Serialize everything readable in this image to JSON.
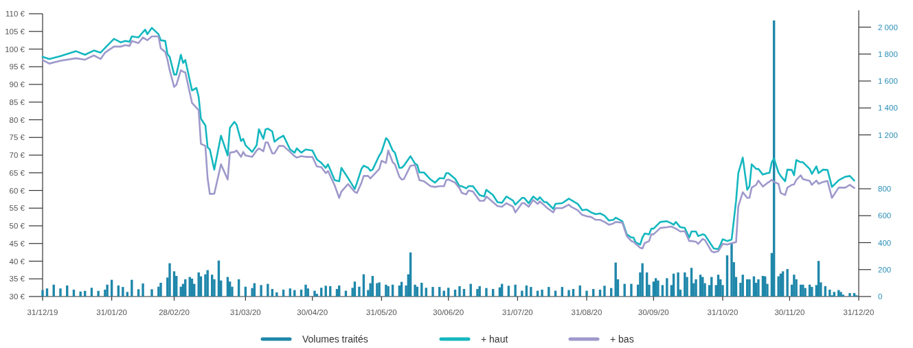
{
  "chart_data": {
    "type": "line",
    "legend": "bottom",
    "xlim": [
      "2019-12-31",
      "2020-12-31"
    ],
    "xticks": [
      {
        "value": "2019-12-31",
        "label": "31/12/19"
      },
      {
        "value": "2020-01-31",
        "label": "31/01/20"
      },
      {
        "value": "2020-02-28",
        "label": "28/02/20"
      },
      {
        "value": "2020-03-31",
        "label": "31/03/20"
      },
      {
        "value": "2020-04-30",
        "label": "30/04/20"
      },
      {
        "value": "2020-05-31",
        "label": "31/05/20"
      },
      {
        "value": "2020-06-30",
        "label": "30/06/20"
      },
      {
        "value": "2020-07-31",
        "label": "31/07/20"
      },
      {
        "value": "2020-08-31",
        "label": "31/08/20"
      },
      {
        "value": "2020-09-30",
        "label": "30/09/20"
      },
      {
        "value": "2020-10-31",
        "label": "31/10/20"
      },
      {
        "value": "2020-11-30",
        "label": "30/11/20"
      },
      {
        "value": "2020-12-31",
        "label": "31/12/20"
      }
    ],
    "ylim": [
      30,
      110
    ],
    "yticks": [
      {
        "value": 30,
        "label": "30 €"
      },
      {
        "value": 35,
        "label": "35 €"
      },
      {
        "value": 40,
        "label": "40 €"
      },
      {
        "value": 45,
        "label": "45 €"
      },
      {
        "value": 50,
        "label": "50 €"
      },
      {
        "value": 55,
        "label": "55 €"
      },
      {
        "value": 60,
        "label": "60 €"
      },
      {
        "value": 65,
        "label": "65 €"
      },
      {
        "value": 70,
        "label": "70 €"
      },
      {
        "value": 75,
        "label": "75 €"
      },
      {
        "value": 80,
        "label": "80 €"
      },
      {
        "value": 85,
        "label": "85 €"
      },
      {
        "value": 90,
        "label": "90 €"
      },
      {
        "value": 95,
        "label": "95 €"
      },
      {
        "value": 100,
        "label": "100 €"
      },
      {
        "value": 105,
        "label": "105 €"
      },
      {
        "value": 110,
        "label": "110 €"
      }
    ],
    "y2lim": [
      0,
      2125
    ],
    "y2ticks": [
      0,
      200,
      400,
      600,
      800,
      {
        "value": 1200,
        "label": "1 200"
      },
      {
        "value": 1400,
        "label": "1 400"
      },
      {
        "value": 1600,
        "label": "1 600"
      },
      {
        "value": 1800,
        "label": "1 800"
      },
      {
        "value": 2000,
        "label": "2 000"
      }
    ],
    "x": [
      "2019-12-31",
      "2020-01-03",
      "2020-01-08",
      "2020-01-15",
      "2020-01-19",
      "2020-01-23",
      "2020-01-26",
      "2020-01-28",
      "2020-02-01",
      "2020-02-04",
      "2020-02-06",
      "2020-02-08",
      "2020-02-09",
      "2020-02-12",
      "2020-02-14",
      "2020-02-15",
      "2020-02-16",
      "2020-02-18",
      "2020-02-21",
      "2020-02-22",
      "2020-02-24",
      "2020-02-25",
      "2020-02-26",
      "2020-02-28",
      "2020-02-29",
      "2020-03-02",
      "2020-03-03",
      "2020-03-04",
      "2020-03-07",
      "2020-03-09",
      "2020-03-10",
      "2020-03-11",
      "2020-03-13",
      "2020-03-14",
      "2020-03-15",
      "2020-03-17",
      "2020-03-20",
      "2020-03-23",
      "2020-03-24",
      "2020-03-26",
      "2020-03-27",
      "2020-03-29",
      "2020-03-30",
      "2020-03-31",
      "2020-04-03",
      "2020-04-05",
      "2020-04-06",
      "2020-04-08",
      "2020-04-09",
      "2020-04-10",
      "2020-04-12",
      "2020-04-13",
      "2020-04-15",
      "2020-04-17",
      "2020-04-20",
      "2020-04-22",
      "2020-04-23",
      "2020-04-25",
      "2020-04-27",
      "2020-04-30",
      "2020-05-02",
      "2020-05-04",
      "2020-05-06",
      "2020-05-07",
      "2020-05-10",
      "2020-05-12",
      "2020-05-13",
      "2020-05-16",
      "2020-05-19",
      "2020-05-20",
      "2020-05-22",
      "2020-05-23",
      "2020-05-25",
      "2020-05-26",
      "2020-05-27",
      "2020-05-30",
      "2020-05-31",
      "2020-06-02",
      "2020-06-03",
      "2020-06-05",
      "2020-06-06",
      "2020-06-08",
      "2020-06-09",
      "2020-06-10",
      "2020-06-13",
      "2020-06-15",
      "2020-06-16",
      "2020-06-17",
      "2020-06-19",
      "2020-06-22",
      "2020-06-24",
      "2020-06-26",
      "2020-06-28",
      "2020-06-29",
      "2020-06-30",
      "2020-07-03",
      "2020-07-05",
      "2020-07-06",
      "2020-07-08",
      "2020-07-09",
      "2020-07-11",
      "2020-07-14",
      "2020-07-16",
      "2020-07-17",
      "2020-07-20",
      "2020-07-22",
      "2020-07-24",
      "2020-07-26",
      "2020-07-29",
      "2020-07-30",
      "2020-08-02",
      "2020-08-03",
      "2020-08-05",
      "2020-08-07",
      "2020-08-09",
      "2020-08-10",
      "2020-08-12",
      "2020-08-13",
      "2020-08-16",
      "2020-08-17",
      "2020-08-20",
      "2020-08-23",
      "2020-08-24",
      "2020-08-27",
      "2020-08-29",
      "2020-08-31",
      "2020-09-02",
      "2020-09-04",
      "2020-09-06",
      "2020-09-08",
      "2020-09-10",
      "2020-09-12",
      "2020-09-13",
      "2020-09-16",
      "2020-09-18",
      "2020-09-20",
      "2020-09-21",
      "2020-09-22",
      "2020-09-24",
      "2020-09-25",
      "2020-09-26",
      "2020-09-28",
      "2020-09-29",
      "2020-09-30",
      "2020-10-03",
      "2020-10-06",
      "2020-10-08",
      "2020-10-09",
      "2020-10-10",
      "2020-10-12",
      "2020-10-14",
      "2020-10-16",
      "2020-10-17",
      "2020-10-19",
      "2020-10-20",
      "2020-10-22",
      "2020-10-23",
      "2020-10-26",
      "2020-10-27",
      "2020-10-29",
      "2020-10-30",
      "2020-10-31",
      "2020-11-02",
      "2020-11-04",
      "2020-11-06",
      "2020-11-07",
      "2020-11-09",
      "2020-11-11",
      "2020-11-12",
      "2020-11-13",
      "2020-11-15",
      "2020-11-16",
      "2020-11-18",
      "2020-11-20",
      "2020-11-21",
      "2020-11-22",
      "2020-11-23",
      "2020-11-25",
      "2020-11-26",
      "2020-11-28",
      "2020-11-29",
      "2020-12-01",
      "2020-12-02",
      "2020-12-03",
      "2020-12-05",
      "2020-12-06",
      "2020-12-09",
      "2020-12-10",
      "2020-12-12",
      "2020-12-13",
      "2020-12-15",
      "2020-12-17",
      "2020-12-19",
      "2020-12-22",
      "2020-12-25",
      "2020-12-27",
      "2020-12-29"
    ],
    "series": [
      {
        "type": "bar",
        "axis": "y2",
        "name": "Volumes traités",
        "color": "#1f87aa",
        "x": [
          "2019-12-31",
          "2020-01-02",
          "2020-01-05",
          "2020-01-08",
          "2020-01-11",
          "2020-01-14",
          "2020-01-17",
          "2020-01-19",
          "2020-01-22",
          "2020-01-25",
          "2020-01-28",
          "2020-01-29",
          "2020-01-31",
          "2020-02-03",
          "2020-02-05",
          "2020-02-07",
          "2020-02-09",
          "2020-02-12",
          "2020-02-14",
          "2020-02-18",
          "2020-02-21",
          "2020-02-22",
          "2020-02-25",
          "2020-02-26",
          "2020-02-28",
          "2020-02-29",
          "2020-03-02",
          "2020-03-03",
          "2020-03-04",
          "2020-03-06",
          "2020-03-07",
          "2020-03-08",
          "2020-03-10",
          "2020-03-11",
          "2020-03-13",
          "2020-03-14",
          "2020-03-16",
          "2020-03-17",
          "2020-03-19",
          "2020-03-20",
          "2020-03-23",
          "2020-03-24",
          "2020-03-25",
          "2020-03-28",
          "2020-03-31",
          "2020-04-03",
          "2020-04-04",
          "2020-04-07",
          "2020-04-10",
          "2020-04-12",
          "2020-04-14",
          "2020-04-17",
          "2020-04-20",
          "2020-04-22",
          "2020-04-25",
          "2020-04-27",
          "2020-04-28",
          "2020-05-01",
          "2020-05-02",
          "2020-05-04",
          "2020-05-06",
          "2020-05-08",
          "2020-05-11",
          "2020-05-12",
          "2020-05-15",
          "2020-05-18",
          "2020-05-19",
          "2020-05-21",
          "2020-05-23",
          "2020-05-25",
          "2020-05-26",
          "2020-05-27",
          "2020-05-29",
          "2020-05-30",
          "2020-06-02",
          "2020-06-03",
          "2020-06-05",
          "2020-06-08",
          "2020-06-09",
          "2020-06-11",
          "2020-06-12",
          "2020-06-13",
          "2020-06-15",
          "2020-06-16",
          "2020-06-18",
          "2020-06-20",
          "2020-06-23",
          "2020-06-26",
          "2020-06-28",
          "2020-06-30",
          "2020-07-03",
          "2020-07-05",
          "2020-07-07",
          "2020-07-10",
          "2020-07-13",
          "2020-07-14",
          "2020-07-17",
          "2020-07-20",
          "2020-07-23",
          "2020-07-24",
          "2020-07-27",
          "2020-07-30",
          "2020-08-02",
          "2020-08-04",
          "2020-08-06",
          "2020-08-09",
          "2020-08-11",
          "2020-08-14",
          "2020-08-17",
          "2020-08-20",
          "2020-08-23",
          "2020-08-25",
          "2020-08-28",
          "2020-08-31",
          "2020-09-03",
          "2020-09-06",
          "2020-09-08",
          "2020-09-11",
          "2020-09-13",
          "2020-09-14",
          "2020-09-17",
          "2020-09-20",
          "2020-09-23",
          "2020-09-24",
          "2020-09-25",
          "2020-09-27",
          "2020-09-28",
          "2020-09-30",
          "2020-10-01",
          "2020-10-02",
          "2020-10-04",
          "2020-10-06",
          "2020-10-08",
          "2020-10-09",
          "2020-10-11",
          "2020-10-12",
          "2020-10-14",
          "2020-10-15",
          "2020-10-17",
          "2020-10-18",
          "2020-10-19",
          "2020-10-21",
          "2020-10-22",
          "2020-10-23",
          "2020-10-25",
          "2020-10-26",
          "2020-10-28",
          "2020-10-29",
          "2020-10-30",
          "2020-10-31",
          "2020-11-02",
          "2020-11-04",
          "2020-11-05",
          "2020-11-06",
          "2020-11-08",
          "2020-11-09",
          "2020-11-11",
          "2020-11-12",
          "2020-11-14",
          "2020-11-15",
          "2020-11-16",
          "2020-11-18",
          "2020-11-19",
          "2020-11-20",
          "2020-11-22",
          "2020-11-23",
          "2020-11-25",
          "2020-11-26",
          "2020-11-27",
          "2020-11-29",
          "2020-12-01",
          "2020-12-02",
          "2020-12-03",
          "2020-12-05",
          "2020-12-06",
          "2020-12-07",
          "2020-12-09",
          "2020-12-10",
          "2020-12-12",
          "2020-12-13",
          "2020-12-14",
          "2020-12-16",
          "2020-12-18",
          "2020-12-19",
          "2020-12-20",
          "2020-12-22",
          "2020-12-23",
          "2020-12-24",
          "2020-12-27",
          "2020-12-29",
          "2020-12-30"
        ],
        "values": [
          48,
          60,
          88,
          60,
          82,
          51,
          37,
          42,
          65,
          42,
          51,
          88,
          124,
          82,
          71,
          34,
          124,
          54,
          97,
          54,
          73,
          102,
          141,
          247,
          187,
          153,
          73,
          94,
          128,
          145,
          133,
          94,
          179,
          150,
          165,
          196,
          162,
          128,
          267,
          119,
          145,
          111,
          73,
          128,
          73,
          63,
          99,
          85,
          94,
          56,
          31,
          51,
          60,
          48,
          51,
          88,
          60,
          43,
          20,
          65,
          80,
          77,
          56,
          82,
          43,
          65,
          111,
          73,
          165,
          48,
          99,
          153,
          99,
          105,
          88,
          77,
          88,
          82,
          109,
          82,
          165,
          327,
          88,
          73,
          102,
          65,
          71,
          71,
          43,
          65,
          51,
          77,
          56,
          94,
          56,
          77,
          63,
          56,
          68,
          94,
          80,
          88,
          43,
          82,
          71,
          43,
          51,
          71,
          43,
          71,
          48,
          56,
          82,
          43,
          56,
          51,
          80,
          63,
          252,
          128,
          94,
          94,
          88,
          179,
          247,
          179,
          88,
          111,
          136,
          119,
          85,
          136,
          85,
          170,
          179,
          51,
          179,
          145,
          213,
          99,
          128,
          162,
          145,
          99,
          85,
          145,
          85,
          162,
          128,
          85,
          306,
          400,
          255,
          145,
          102,
          162,
          128,
          128,
          150,
          102,
          128,
          153,
          150,
          94,
          323,
          2050,
          150,
          170,
          187,
          204,
          88,
          162,
          128,
          88,
          88,
          63,
          88,
          71,
          85,
          264,
          105,
          77,
          51,
          9,
          34,
          48,
          34,
          14,
          26,
          26,
          9
        ]
      },
      {
        "name": "+ haut",
        "color": "#14b7bf",
        "values": [
          97.8,
          97.2,
          98,
          99.4,
          98.4,
          99.6,
          99,
          100.3,
          102.9,
          101.9,
          102.3,
          102.1,
          103.6,
          103.3,
          104.8,
          105.5,
          104.2,
          106,
          104.2,
          102.5,
          102.3,
          98.6,
          97.8,
          92.8,
          92.8,
          98.4,
          96.1,
          96.9,
          88.3,
          89,
          86.4,
          80.3,
          78.4,
          72.2,
          71.6,
          65.9,
          75.5,
          69.9,
          77.7,
          79.4,
          78.6,
          74,
          74.6,
          72.8,
          70.9,
          72.8,
          77.3,
          74.6,
          77.3,
          77.5,
          76.7,
          73.8,
          74.8,
          75.5,
          71.6,
          70.7,
          71.9,
          70.7,
          71.6,
          71.3,
          68.8,
          67.8,
          66.4,
          67.4,
          62.9,
          62.6,
          66.4,
          63.5,
          60.4,
          62.2,
          66.1,
          67,
          66.4,
          65.6,
          65.9,
          69.9,
          70.9,
          74.8,
          74.2,
          71.3,
          70.7,
          66.4,
          66.4,
          67,
          69.7,
          67.6,
          67.2,
          65.1,
          65.1,
          63.1,
          62.2,
          63.5,
          63.4,
          64.9,
          64.9,
          63.3,
          61.2,
          61.2,
          60.6,
          61.2,
          61.2,
          58.7,
          58.3,
          60.2,
          58.7,
          56.7,
          56.5,
          58.3,
          57.1,
          56,
          57.9,
          57.9,
          56.4,
          58.3,
          57.3,
          58.1,
          56.7,
          56.7,
          54.8,
          56.2,
          56.4,
          57.7,
          57.3,
          56.2,
          54.4,
          54.6,
          53.8,
          53.3,
          53.5,
          52.9,
          51.5,
          51.7,
          52.3,
          51.3,
          47.6,
          46.7,
          46.7,
          45.3,
          44.7,
          46.7,
          47.8,
          47.6,
          49.2,
          49.2,
          51.1,
          51.3,
          50.7,
          50.3,
          51.1,
          49.6,
          49.4,
          46.7,
          48.4,
          48.4,
          47.1,
          47.6,
          47.4,
          44.5,
          43.6,
          43.4,
          44.7,
          46.2,
          45.7,
          46.1,
          57.1,
          64.9,
          69.3,
          60.2,
          61.2,
          67.4,
          66.1,
          66.1,
          64.5,
          64.9,
          65,
          68,
          69,
          65.1,
          64.1,
          62.6,
          65.9,
          65.8,
          64.3,
          68.6,
          68,
          68,
          66.1,
          64.7,
          66.8,
          64.9,
          65.9,
          65.8,
          61,
          62.9,
          63.9,
          64.1,
          62.8
        ]
      },
      {
        "name": "+ bas",
        "color": "#9e99cb",
        "values": [
          96.9,
          95.9,
          96.7,
          97.4,
          97,
          98.2,
          97.2,
          99,
          100.7,
          100.7,
          101.1,
          100.9,
          102.3,
          101.7,
          103.3,
          102.9,
          102.5,
          103.6,
          103.6,
          100.2,
          99.2,
          97,
          94,
          89.3,
          89.9,
          94,
          93.6,
          93.4,
          84.8,
          83.4,
          82.7,
          73.2,
          72.6,
          63.5,
          59,
          59.1,
          67.4,
          63.1,
          70.7,
          70.9,
          71.3,
          69.5,
          70.9,
          69.9,
          69.5,
          71.3,
          71.9,
          71.1,
          73.6,
          73.6,
          70.5,
          70.5,
          72.6,
          72.6,
          70.9,
          69.7,
          69.3,
          69.7,
          69.5,
          69.5,
          66.8,
          66.6,
          64.9,
          65.5,
          61.4,
          57.9,
          59.7,
          61.8,
          59.6,
          59.3,
          62.2,
          64.1,
          64.1,
          63.4,
          64.1,
          66.1,
          68.4,
          67.8,
          71.3,
          68,
          67.4,
          63.9,
          63.1,
          63.2,
          67,
          67.2,
          65.1,
          62.9,
          62.6,
          61.2,
          61,
          61.2,
          61.2,
          62.9,
          63.1,
          62.2,
          60.6,
          59.3,
          58.9,
          60,
          59.7,
          57.1,
          57.1,
          58.3,
          56.7,
          55.6,
          55.4,
          56.4,
          55.4,
          53.8,
          56.4,
          56.4,
          55.4,
          57.3,
          56.2,
          56.9,
          55.8,
          55.2,
          53.8,
          55,
          55,
          56,
          55.4,
          54.4,
          53.1,
          52.7,
          52.5,
          51.7,
          51.7,
          51.1,
          50.3,
          50.7,
          51.1,
          50.9,
          47.1,
          45.7,
          45.5,
          44.9,
          43.8,
          43.6,
          45.1,
          45.7,
          47.6,
          47.6,
          49.4,
          49.6,
          49.8,
          49.5,
          49.2,
          48.4,
          48.5,
          45.7,
          45.7,
          45.5,
          44.9,
          46.3,
          46,
          42.8,
          42.5,
          42.8,
          43.8,
          44.9,
          44.7,
          45.1,
          45.4,
          55.5,
          59.5,
          57.9,
          57.9,
          60.8,
          61.6,
          62.8,
          61.1,
          62.1,
          62.5,
          63,
          62.4,
          61.9,
          59.3,
          58.7,
          60.8,
          61.6,
          61.7,
          63,
          64.3,
          63.2,
          62.7,
          61.6,
          62.8,
          61.9,
          62.4,
          62.7,
          57.9,
          60.8,
          60.8,
          61.6,
          60.7
        ]
      }
    ]
  }
}
